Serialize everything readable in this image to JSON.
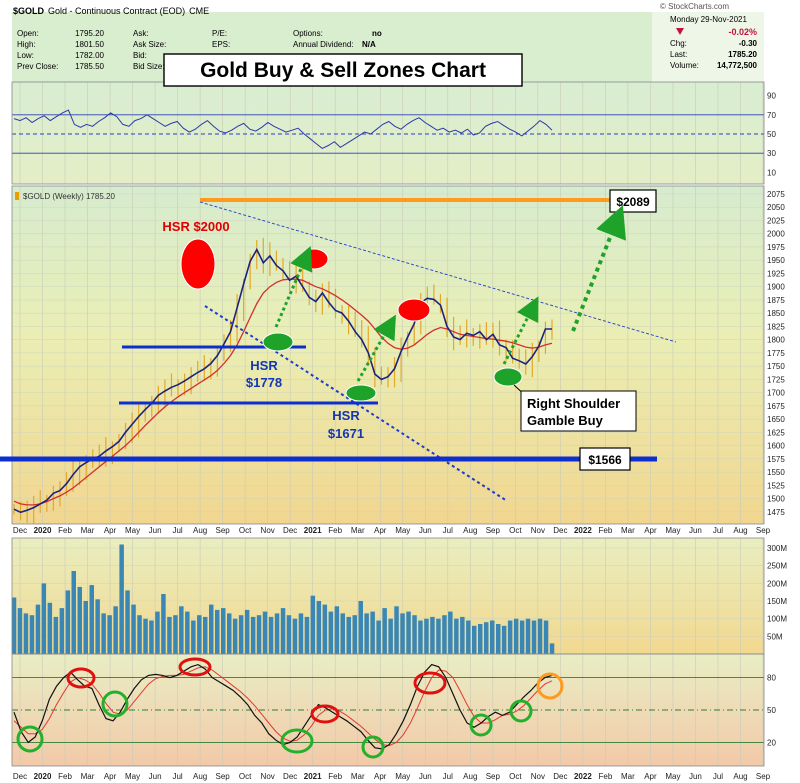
{
  "header": {
    "symbol": "$GOLD",
    "symbol_desc": "Gold - Continuous Contract (EOD)",
    "exchange": "CME",
    "source": "© StockCharts.com",
    "date": "Monday  29-Nov-2021",
    "change_pct": "-0.02%",
    "chg_label": "Chg:",
    "chg": "-0.30",
    "last_label": "Last:",
    "last": "1785.20",
    "volume_label": "Volume:",
    "volume": "14,772,500",
    "open_label": "Open:",
    "open": "1795.20",
    "high_label": "High:",
    "high": "1801.50",
    "low_label": "Low:",
    "low": "1782.00",
    "prevclose_label": "Prev Close:",
    "prevclose": "1785.50",
    "ask_label": "Ask:",
    "asksize_label": "Ask Size:",
    "bid_label": "Bid:",
    "bidsize_label": "Bid Size:",
    "pe_label": "P/E:",
    "eps_label": "EPS:",
    "options_label": "Options:",
    "options": "no",
    "dividend_label": "Annual Dividend:",
    "dividend": "N/A",
    "title": "Gold Buy & Sell Zones Chart"
  },
  "price_panel_label": "$GOLD (Weekly) 1785.20",
  "annotations": {
    "hsr2000": "HSR $2000",
    "hsr1778_a": "HSR",
    "hsr1778_b": "$1778",
    "hsr1671_a": "HSR",
    "hsr1671_b": "$1671",
    "rsb_a": "Right Shoulder",
    "rsb_b": "Gamble Buy",
    "box2089": "$2089",
    "box1566": "$1566"
  },
  "colors": {
    "price_line": "#1a237e",
    "ma_line": "#d32f2f",
    "volume_bar": "#3a87b5",
    "sell_zone": "#ff0000",
    "buy_zone": "#1fa22a",
    "hsr_line": "#0d2fd0",
    "target_line": "#ff9a1f",
    "up_arrow": "#1fa22a",
    "stoch_orange": "#ff9a1f"
  },
  "chart_data": [
    {
      "type": "line",
      "panel": "rsi",
      "y_ticks": [
        "90",
        "70",
        "50",
        "30",
        "10"
      ],
      "ylim": [
        0,
        100
      ],
      "values": [
        66,
        64,
        67,
        62,
        66,
        69,
        64,
        68,
        72,
        75,
        60,
        57,
        60,
        58,
        63,
        67,
        72,
        68,
        60,
        58,
        64,
        66,
        70,
        66,
        62,
        58,
        61,
        63,
        56,
        52,
        55,
        60,
        64,
        58,
        53,
        51,
        54,
        58,
        61,
        55,
        53,
        57,
        62,
        58,
        55,
        52,
        54,
        56,
        50,
        45,
        40,
        35,
        38,
        42,
        36,
        40,
        44,
        48,
        52,
        50,
        55,
        60,
        63,
        58,
        55,
        60,
        64,
        67,
        62,
        58,
        54,
        56,
        52,
        54,
        51,
        55,
        49,
        51,
        58,
        61,
        63,
        59,
        55,
        52,
        48,
        53,
        58,
        64,
        60,
        54
      ]
    },
    {
      "type": "line",
      "panel": "price",
      "x_labels": [
        "Dec",
        "2020",
        "Feb",
        "Mar",
        "Apr",
        "May",
        "Jun",
        "Jul",
        "Aug",
        "Sep",
        "Oct",
        "Nov",
        "Dec",
        "2021",
        "Feb",
        "Mar",
        "Apr",
        "May",
        "Jun",
        "Jul",
        "Aug",
        "Sep",
        "Oct",
        "Nov",
        "Dec",
        "2022",
        "Feb",
        "Mar",
        "Apr",
        "May",
        "Jun",
        "Jul",
        "Aug",
        "Sep"
      ],
      "y_ticks": [
        "2075",
        "2050",
        "2025",
        "2000",
        "1975",
        "1950",
        "1925",
        "1900",
        "1875",
        "1850",
        "1825",
        "1800",
        "1775",
        "1750",
        "1725",
        "1700",
        "1675",
        "1650",
        "1625",
        "1600",
        "1575",
        "1550",
        "1525",
        "1500",
        "1475"
      ],
      "ylim": [
        1452,
        2090
      ],
      "series": [
        {
          "values": [
            1480,
            1474,
            1478,
            1483,
            1490,
            1497,
            1510,
            1515,
            1528,
            1545,
            1560,
            1568,
            1575,
            1580,
            1590,
            1598,
            1608,
            1625,
            1640,
            1655,
            1668,
            1680,
            1695,
            1703,
            1710,
            1715,
            1722,
            1730,
            1738,
            1745,
            1755,
            1770,
            1792,
            1815,
            1860,
            1905,
            1948,
            1970,
            1945,
            1958,
            1940,
            1930,
            1912,
            1920,
            1900,
            1880,
            1872,
            1888,
            1870,
            1855,
            1850,
            1835,
            1815,
            1800,
            1775,
            1735,
            1725,
            1730,
            1745,
            1778,
            1805,
            1830,
            1870,
            1878,
            1876,
            1865,
            1825,
            1805,
            1800,
            1812,
            1808,
            1815,
            1800,
            1810,
            1790,
            1785,
            1765,
            1760,
            1754,
            1768,
            1788,
            1820,
            1820
          ]
        },
        {
          "values": [
            1495,
            1490,
            1488,
            1488,
            1490,
            1494,
            1500,
            1505,
            1512,
            1520,
            1530,
            1540,
            1550,
            1560,
            1570,
            1580,
            1590,
            1600,
            1612,
            1625,
            1638,
            1650,
            1662,
            1673,
            1683,
            1692,
            1700,
            1708,
            1716,
            1724,
            1732,
            1742,
            1755,
            1770,
            1790,
            1815,
            1842,
            1868,
            1888,
            1900,
            1908,
            1913,
            1914,
            1914,
            1912,
            1906,
            1900,
            1896,
            1890,
            1883,
            1875,
            1866,
            1856,
            1846,
            1835,
            1820,
            1805,
            1793,
            1785,
            1782,
            1784,
            1790,
            1800,
            1810,
            1818,
            1823,
            1820,
            1815,
            1810,
            1808,
            1806,
            1804,
            1802,
            1801,
            1799,
            1797,
            1794,
            1790,
            1786,
            1784,
            1786,
            1790,
            1793
          ]
        }
      ]
    },
    {
      "type": "bar",
      "panel": "volume",
      "y_ticks": [
        "300M",
        "250M",
        "200M",
        "150M",
        "100M",
        "50M"
      ],
      "ylim": [
        0,
        320
      ],
      "values": [
        160,
        130,
        115,
        110,
        140,
        200,
        145,
        105,
        130,
        180,
        235,
        190,
        150,
        195,
        155,
        115,
        110,
        135,
        310,
        180,
        140,
        110,
        100,
        95,
        120,
        170,
        105,
        110,
        135,
        120,
        95,
        110,
        105,
        140,
        125,
        130,
        115,
        100,
        110,
        125,
        105,
        110,
        120,
        105,
        115,
        130,
        110,
        100,
        115,
        105,
        165,
        150,
        140,
        120,
        135,
        115,
        105,
        110,
        150,
        115,
        120,
        95,
        130,
        100,
        135,
        115,
        120,
        110,
        95,
        100,
        105,
        100,
        110,
        120,
        100,
        105,
        95,
        80,
        85,
        90,
        95,
        85,
        80,
        95,
        100,
        95,
        100,
        95,
        100,
        95,
        30
      ]
    },
    {
      "type": "line",
      "panel": "stochastic",
      "y_ticks": [
        "80",
        "50",
        "20"
      ],
      "ylim": [
        0,
        100
      ],
      "series": [
        {
          "values": [
            48,
            30,
            20,
            25,
            40,
            60,
            72,
            80,
            85,
            78,
            72,
            70,
            55,
            42,
            40,
            48,
            60,
            70,
            78,
            82,
            83,
            82,
            80,
            82,
            86,
            90,
            92,
            88,
            80,
            76,
            72,
            68,
            62,
            55,
            45,
            38,
            28,
            22,
            18,
            20,
            25,
            35,
            45,
            55,
            52,
            48,
            44,
            40,
            35,
            30,
            22,
            15,
            14,
            18,
            28,
            40,
            55,
            72,
            85,
            92,
            90,
            80,
            65,
            50,
            38,
            34,
            38,
            44,
            48,
            45,
            48,
            55,
            62,
            68,
            75,
            80,
            82
          ]
        },
        {
          "values": [
            40,
            34,
            28,
            28,
            32,
            42,
            55,
            66,
            76,
            80,
            78,
            74,
            66,
            56,
            48,
            46,
            50,
            58,
            66,
            74,
            79,
            81,
            82,
            82,
            83,
            86,
            89,
            90,
            87,
            82,
            77,
            72,
            67,
            61,
            54,
            46,
            38,
            30,
            24,
            21,
            22,
            27,
            35,
            45,
            50,
            51,
            49,
            45,
            40,
            35,
            29,
            23,
            18,
            17,
            20,
            27,
            38,
            52,
            67,
            80,
            87,
            86,
            80,
            68,
            55,
            44,
            38,
            38,
            41,
            45,
            46,
            49,
            54,
            61,
            68,
            74,
            77
          ]
        }
      ]
    }
  ]
}
